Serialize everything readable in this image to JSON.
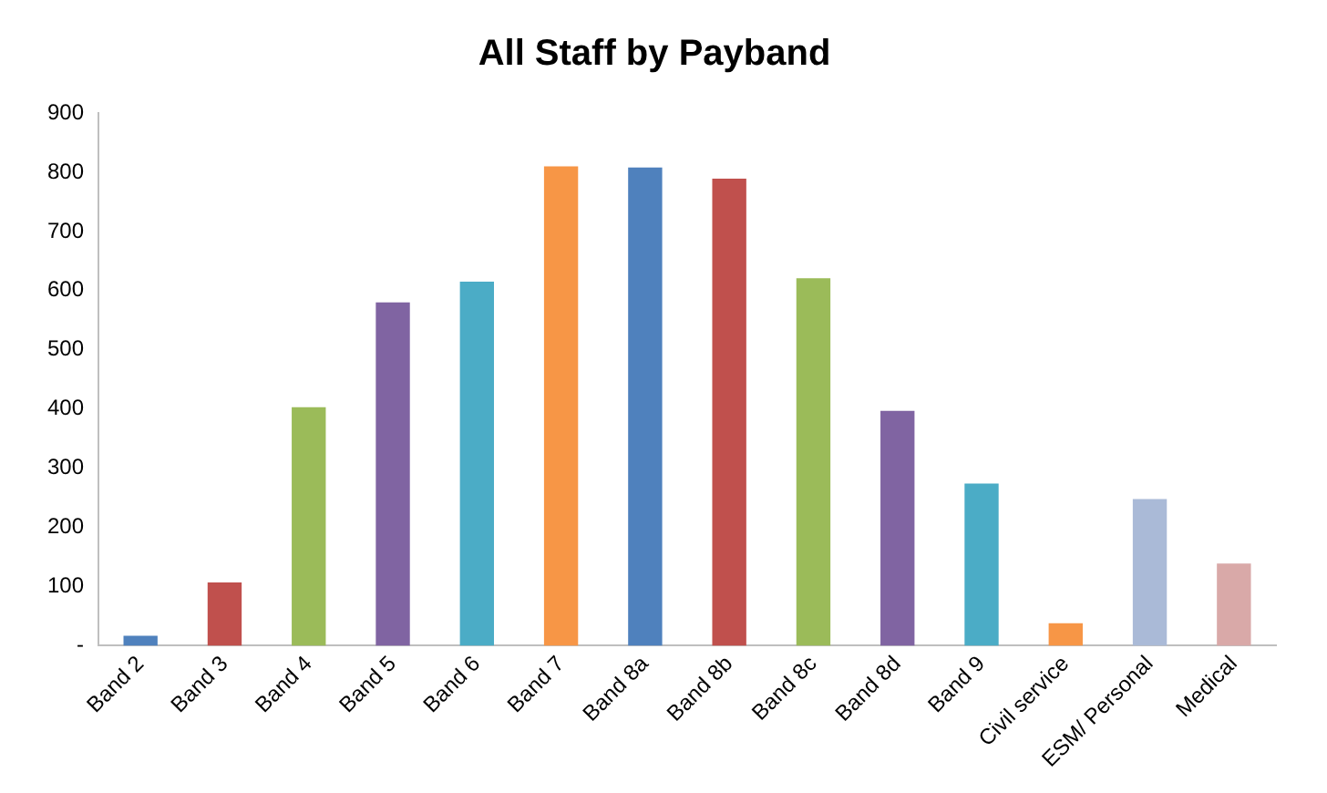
{
  "chart_data": {
    "type": "bar",
    "title": "All Staff by Payband",
    "categories": [
      "Band 2",
      "Band 3",
      "Band 4",
      "Band 5",
      "Band 6",
      "Band 7",
      "Band 8a",
      "Band 8b",
      "Band 8c",
      "Band 8d",
      "Band 9",
      "Civil service",
      "ESM/ Personal",
      "Medical"
    ],
    "values": [
      17,
      107,
      403,
      580,
      615,
      810,
      808,
      789,
      621,
      397,
      274,
      38,
      248,
      139
    ],
    "colors": [
      "#4f81bd",
      "#c0504d",
      "#9bbb59",
      "#8064a2",
      "#4bacc6",
      "#f79646",
      "#4f81bd",
      "#c0504d",
      "#9bbb59",
      "#8064a2",
      "#4bacc6",
      "#f79646",
      "#aabad7",
      "#d9a9a8"
    ],
    "ylim": [
      0,
      900
    ],
    "yticks": [
      {
        "value": 0,
        "label": "-"
      },
      100,
      200,
      300,
      400,
      500,
      600,
      700,
      800,
      900
    ],
    "grid": false
  }
}
